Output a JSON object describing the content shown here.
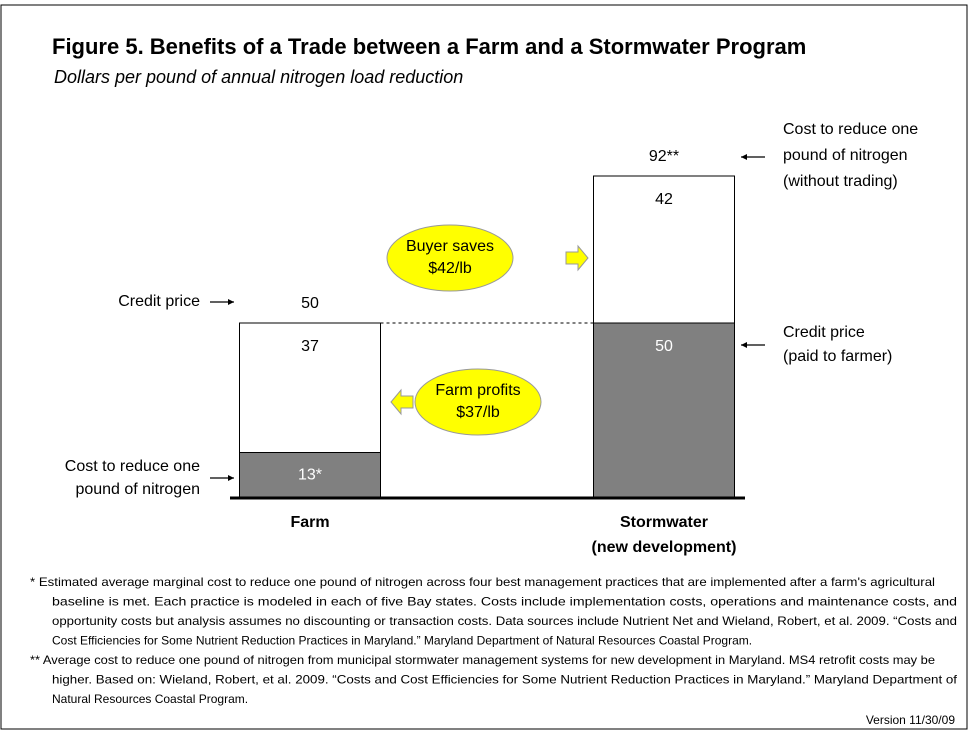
{
  "chart_data": {
    "type": "bar",
    "stacked": true,
    "title": "Figure 5.  Benefits of a Trade between a Farm and a Stormwater Program",
    "subtitle": "Dollars per pound of annual nitrogen load reduction",
    "categories": [
      "Farm",
      "Stormwater (new development)"
    ],
    "series": [
      {
        "color": "#808080",
        "values": [
          13,
          50
        ],
        "value_labels": [
          "13*",
          "50"
        ]
      },
      {
        "color": "#ffffff",
        "values": [
          37,
          42
        ]
      }
    ],
    "totals": [
      50,
      92
    ],
    "total_labels": [
      "50",
      "92**"
    ],
    "annotations": {
      "left_credit": [
        "Credit price"
      ],
      "left_cost": [
        "Cost to reduce one",
        "pound of nitrogen"
      ],
      "right_cost": [
        "Cost to reduce one",
        "pound of nitrogen",
        "(without trading)"
      ],
      "right_credit": [
        "Credit price",
        "(paid to farmer)"
      ],
      "buyer": [
        "Buyer saves",
        "$42/lb"
      ],
      "farm": [
        "Farm profits",
        "$37/lb"
      ]
    },
    "footnotes": [
      [
        "*  Estimated average marginal cost to reduce one pound of nitrogen across four best management practices that are implemented after a farm's agricultural",
        "baseline is met. Each practice is modeled in each of five Bay states. Costs include implementation costs, operations and maintenance costs, and",
        "opportunity costs but analysis assumes no discounting or transaction costs. Data sources include Nutrient Net and Wieland, Robert, et al. 2009. “Costs and",
        "Cost Efficiencies for Some Nutrient Reduction Practices in Maryland.” Maryland Department of Natural Resources Coastal Program."
      ],
      [
        "** Average cost to reduce one pound of nitrogen from municipal stormwater management  systems for new development in Maryland. MS4 retrofit costs may be",
        "higher. Based on: Wieland, Robert, et al. 2009. “Costs and Cost Efficiencies for Some Nutrient Reduction Practices in Maryland.” Maryland Department of",
        "Natural Resources Coastal Program."
      ]
    ],
    "version": "Version 11/30/09"
  }
}
